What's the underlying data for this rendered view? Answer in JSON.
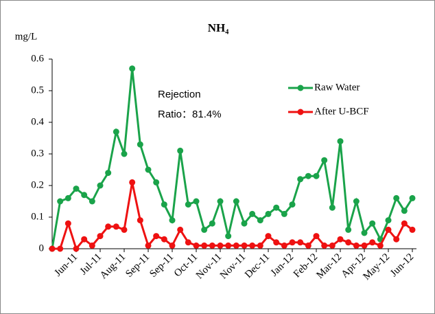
{
  "chart_data": {
    "type": "line",
    "title": "NH₄",
    "ylabel": "mg/L",
    "annotation": [
      "Rejection",
      "Ratio：81.4%"
    ],
    "categories": [
      null,
      null,
      null,
      "Jun-11",
      null,
      null,
      "Jul-11",
      null,
      null,
      "Aug-11",
      null,
      null,
      "Sep-11",
      null,
      null,
      "Sep-11",
      null,
      null,
      "Oct-11",
      null,
      null,
      "Nov-11",
      null,
      null,
      "Nov-11",
      null,
      null,
      "Dec-11",
      null,
      null,
      "Jan-12",
      null,
      null,
      "Feb-12",
      null,
      null,
      "Mar-12",
      null,
      null,
      "Apr-12",
      null,
      null,
      "May-12",
      null,
      null,
      "Jun-12"
    ],
    "series": [
      {
        "name": "Raw Water",
        "color": "#1aa34a",
        "values": [
          0,
          0.15,
          0.16,
          0.19,
          0.17,
          0.15,
          0.2,
          0.24,
          0.37,
          0.3,
          0.57,
          0.33,
          0.25,
          0.21,
          0.14,
          0.09,
          0.31,
          0.14,
          0.15,
          0.06,
          0.08,
          0.15,
          0.04,
          0.15,
          0.08,
          0.11,
          0.09,
          0.11,
          0.13,
          0.11,
          0.14,
          0.22,
          0.23,
          0.23,
          0.28,
          0.13,
          0.34,
          0.06,
          0.15,
          0.05,
          0.08,
          0.03,
          0.09,
          0.16,
          0.12,
          0.16
        ]
      },
      {
        "name": "After U-BCF",
        "color": "#ee1111",
        "values": [
          0,
          0,
          0.08,
          0,
          0.03,
          0.01,
          0.04,
          0.07,
          0.07,
          0.06,
          0.21,
          0.09,
          0.01,
          0.04,
          0.03,
          0.01,
          0.06,
          0.02,
          0.01,
          0.01,
          0.01,
          0.01,
          0.01,
          0.01,
          0.01,
          0.01,
          0.01,
          0.04,
          0.02,
          0.01,
          0.02,
          0.02,
          0.01,
          0.04,
          0.01,
          0.01,
          0.03,
          0.02,
          0.01,
          0.01,
          0.02,
          0.01,
          0.06,
          0.03,
          0.08,
          0.06
        ]
      }
    ],
    "ylim": [
      0,
      0.6
    ],
    "yticks": [
      0,
      0.1,
      0.2,
      0.3,
      0.4,
      0.5,
      0.6
    ],
    "legend": "upper right",
    "grid": false
  }
}
